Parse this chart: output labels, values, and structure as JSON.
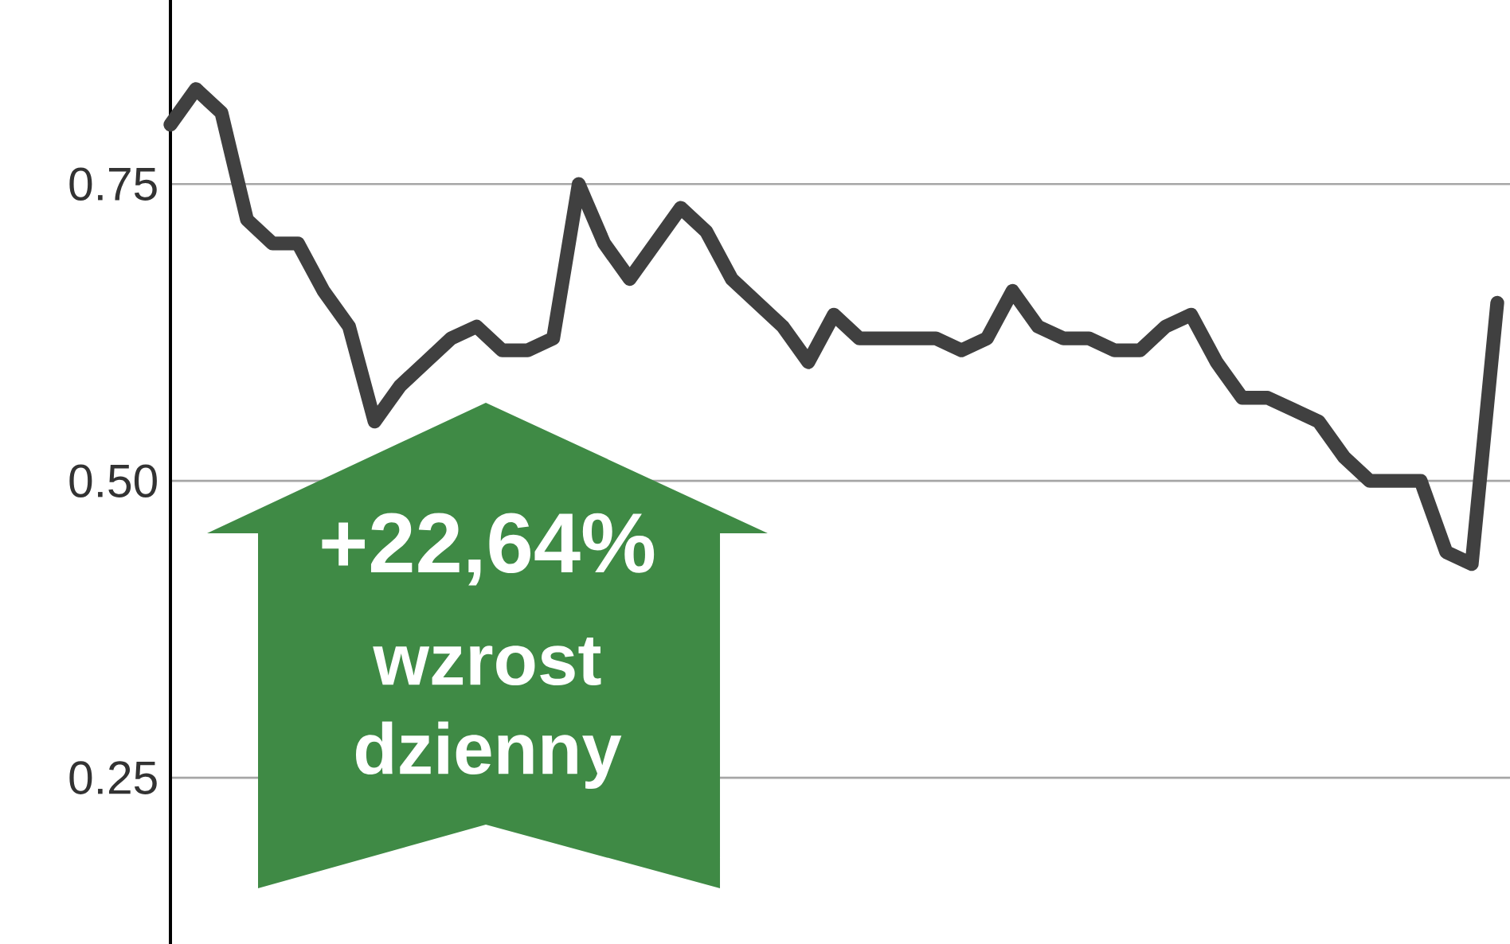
{
  "chart_data": {
    "type": "line",
    "categories": [
      null,
      null,
      null,
      null,
      null,
      null,
      null,
      null,
      null,
      null,
      null,
      null,
      null,
      null,
      null,
      null,
      null,
      null,
      null,
      null,
      null,
      null,
      null,
      null,
      null,
      null,
      null,
      null,
      null,
      null,
      null,
      null,
      null,
      null,
      null,
      null,
      null,
      null,
      null,
      null,
      null,
      null,
      null,
      null,
      null,
      null,
      null,
      null,
      null,
      null,
      null,
      null,
      null
    ],
    "series": [
      {
        "color": "#404040",
        "values": [
          0.8,
          0.83,
          0.81,
          0.72,
          0.7,
          0.7,
          0.66,
          0.63,
          0.55,
          0.58,
          0.6,
          0.62,
          0.63,
          0.61,
          0.61,
          0.62,
          0.75,
          0.7,
          0.67,
          0.7,
          0.73,
          0.71,
          0.67,
          0.65,
          0.63,
          0.6,
          0.64,
          0.62,
          0.62,
          0.62,
          0.62,
          0.61,
          0.62,
          0.66,
          0.63,
          0.62,
          0.62,
          0.61,
          0.61,
          0.63,
          0.64,
          0.6,
          0.57,
          0.57,
          0.56,
          0.55,
          0.52,
          0.5,
          0.5,
          0.5,
          0.44,
          0.43,
          0.65
        ]
      }
    ],
    "ylim": [
      0.11,
      0.905
    ],
    "yticks": [
      {
        "value": 0.25,
        "label": "0.25"
      },
      {
        "value": 0.5,
        "label": "0.50"
      },
      {
        "value": 0.75,
        "label": "0.75"
      }
    ],
    "grid": "y",
    "tick_labels": "y",
    "marker": "none",
    "line_style": "solid",
    "annotations": [
      "+22,64%",
      "wzrost dzienny"
    ]
  }
}
